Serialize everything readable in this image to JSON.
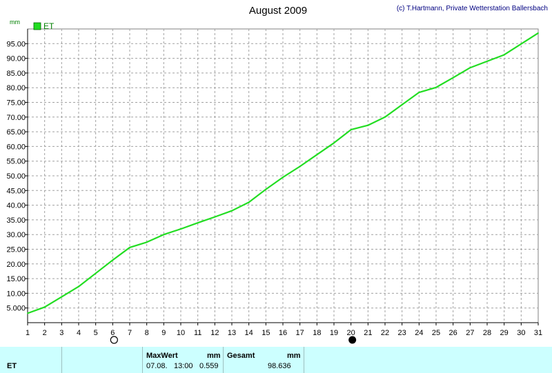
{
  "title": "August 2009",
  "copyright": "(c) T.Hartmann, Private Wetterstation Ballersbach",
  "y_unit": "mm",
  "legend": [
    {
      "label": "ET",
      "color": "#22dd22"
    }
  ],
  "moon_phases": [
    {
      "day": 6,
      "phase": "full"
    },
    {
      "day": 20,
      "phase": "new"
    }
  ],
  "chart_data": {
    "type": "line",
    "title": "August 2009",
    "xlabel": "",
    "ylabel": "mm",
    "xlim": [
      1,
      31
    ],
    "ylim": [
      0,
      100
    ],
    "x_ticks": [
      "1",
      "2",
      "3",
      "4",
      "5",
      "6",
      "7",
      "8",
      "9",
      "10",
      "11",
      "12",
      "13",
      "14",
      "15",
      "16",
      "17",
      "18",
      "19",
      "20",
      "21",
      "22",
      "23",
      "24",
      "25",
      "26",
      "27",
      "28",
      "29",
      "30",
      "31"
    ],
    "y_ticks": [
      "5.000",
      "10.00",
      "15.00",
      "20.00",
      "25.00",
      "30.00",
      "35.00",
      "40.00",
      "45.00",
      "50.00",
      "55.00",
      "60.00",
      "65.00",
      "70.00",
      "75.00",
      "80.00",
      "85.00",
      "90.00",
      "95.00"
    ],
    "grid": true,
    "legend_position": "top-left",
    "series": [
      {
        "name": "ET",
        "color": "#22dd22",
        "x": [
          1,
          2,
          3,
          4,
          5,
          6,
          7,
          8,
          9,
          10,
          11,
          12,
          13,
          14,
          15,
          16,
          17,
          18,
          19,
          20,
          21,
          22,
          23,
          24,
          25,
          26,
          27,
          28,
          29,
          30,
          31
        ],
        "values": [
          3.2,
          5.3,
          8.8,
          12.3,
          16.8,
          21.3,
          25.6,
          27.4,
          30.0,
          31.9,
          34.0,
          36.0,
          38.1,
          41.0,
          45.4,
          49.5,
          53.2,
          57.2,
          61.2,
          65.7,
          67.2,
          70.0,
          74.2,
          78.4,
          80.1,
          83.4,
          86.8,
          89.0,
          91.2,
          94.9,
          98.6
        ]
      }
    ]
  },
  "stats": {
    "series_label": "ET",
    "max_header": "MaxWert",
    "max_unit": "mm",
    "max_date": "07.08.",
    "max_time": "13:00",
    "max_value": "0.559",
    "total_header": "Gesamt",
    "total_unit": "mm",
    "total_value": "98.636"
  }
}
